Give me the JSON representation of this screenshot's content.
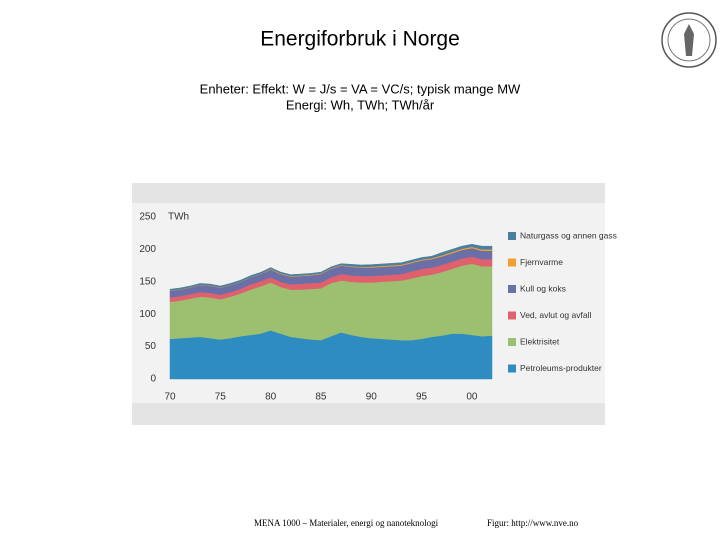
{
  "slide": {
    "title": "Energiforbruk i Norge",
    "subtitle": [
      "Enheter: Effekt: W = J/s = VA = VC/s; typisk mange MW",
      "Energi: Wh, TWh; TWh/år"
    ],
    "footer_left": "MENA 1000 – Materialer, energi og nanoteknologi",
    "footer_right": "Figur: http://www.nve.no"
  },
  "chart_data": {
    "type": "stacked_area",
    "y_unit": "TWh",
    "x": [
      1970,
      1971,
      1972,
      1973,
      1974,
      1975,
      1976,
      1977,
      1978,
      1979,
      1980,
      1981,
      1982,
      1983,
      1984,
      1985,
      1986,
      1987,
      1988,
      1989,
      1990,
      1991,
      1992,
      1993,
      1994,
      1995,
      1996,
      1997,
      1998,
      1999,
      2000,
      2001,
      2002
    ],
    "xlim": [
      1970,
      2002
    ],
    "xticks": [
      {
        "value": 1970,
        "label": "70"
      },
      {
        "value": 1975,
        "label": "75"
      },
      {
        "value": 1980,
        "label": "80"
      },
      {
        "value": 1985,
        "label": "85"
      },
      {
        "value": 1990,
        "label": "90"
      },
      {
        "value": 1995,
        "label": "95"
      },
      {
        "value": 2000,
        "label": "00"
      }
    ],
    "ylim": [
      0,
      250
    ],
    "yticks": [
      0,
      50,
      100,
      150,
      200,
      250
    ],
    "series": [
      {
        "name": "Petroleums-produkter",
        "color": "#2e8cc0",
        "values": [
          62,
          63,
          64,
          65,
          63,
          61,
          63,
          66,
          68,
          70,
          75,
          70,
          65,
          63,
          61,
          60,
          66,
          72,
          68,
          65,
          63,
          62,
          61,
          60,
          60,
          62,
          65,
          67,
          70,
          70,
          68,
          66,
          67
        ]
      },
      {
        "name": "Elektrisitet",
        "color": "#9dbf70",
        "values": [
          57,
          58,
          60,
          62,
          63,
          62,
          64,
          66,
          70,
          73,
          74,
          72,
          73,
          75,
          78,
          80,
          82,
          80,
          82,
          84,
          86,
          88,
          90,
          92,
          95,
          97,
          96,
          98,
          100,
          105,
          110,
          108,
          107
        ]
      },
      {
        "name": "Ved, avlut og avfall",
        "color": "#e0606e",
        "values": [
          7,
          7,
          7,
          7,
          7,
          7,
          7,
          7,
          8,
          8,
          8,
          8,
          8,
          9,
          9,
          9,
          9,
          10,
          10,
          10,
          10,
          10,
          10,
          10,
          11,
          11,
          11,
          11,
          11,
          11,
          11,
          11,
          11
        ]
      },
      {
        "name": "Kull og koks",
        "color": "#6a6fa8",
        "values": [
          10,
          10,
          10,
          11,
          11,
          11,
          11,
          11,
          11,
          11,
          12,
          12,
          12,
          12,
          12,
          13,
          13,
          13,
          13,
          13,
          13,
          13,
          13,
          13,
          13,
          13,
          13,
          13,
          13,
          13,
          13,
          13,
          13
        ]
      },
      {
        "name": "Fjernvarme",
        "color": "#f0a030",
        "values": [
          0.5,
          0.5,
          0.5,
          0.5,
          0.5,
          0.5,
          0.5,
          0.5,
          0.5,
          0.5,
          1,
          1,
          1,
          1,
          1,
          1,
          1,
          1,
          1,
          1,
          1.5,
          1.5,
          1.5,
          1.5,
          1.5,
          1.5,
          1.5,
          2,
          2,
          2,
          2,
          2,
          2
        ]
      },
      {
        "name": "Naturgass og annen gass",
        "color": "#4a7fa0",
        "values": [
          2,
          2,
          2,
          2,
          2,
          2,
          2,
          2,
          2,
          2,
          2,
          2,
          2,
          2,
          2,
          2,
          2,
          2,
          3,
          3,
          3,
          3,
          3,
          3,
          3,
          3,
          3,
          4,
          4,
          4,
          4,
          5,
          5
        ]
      }
    ]
  }
}
